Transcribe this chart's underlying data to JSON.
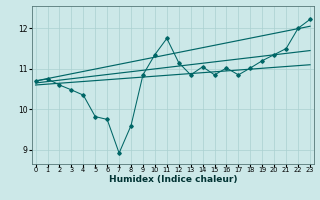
{
  "xlabel": "Humidex (Indice chaleur)",
  "ylabel": "",
  "bg_color": "#cce8e8",
  "line_color": "#006666",
  "grid_color": "#aad0d0",
  "x_data": [
    0,
    1,
    2,
    3,
    4,
    5,
    6,
    7,
    8,
    9,
    10,
    11,
    12,
    13,
    14,
    15,
    16,
    17,
    18,
    19,
    20,
    21,
    22,
    23
  ],
  "y_main": [
    10.7,
    10.75,
    10.6,
    10.48,
    10.35,
    9.82,
    9.75,
    8.92,
    9.6,
    10.85,
    11.35,
    11.75,
    11.15,
    10.85,
    11.05,
    10.85,
    11.02,
    10.85,
    11.02,
    11.2,
    11.35,
    11.5,
    12.0,
    12.22
  ],
  "trend1_x": [
    0,
    23
  ],
  "trend1_y": [
    10.7,
    12.05
  ],
  "trend2_x": [
    0,
    23
  ],
  "trend2_y": [
    10.65,
    11.45
  ],
  "trend3_x": [
    0,
    23
  ],
  "trend3_y": [
    10.6,
    11.1
  ],
  "ylim": [
    8.65,
    12.55
  ],
  "xlim": [
    -0.3,
    23.3
  ],
  "yticks": [
    9,
    10,
    11,
    12
  ],
  "xticks": [
    0,
    1,
    2,
    3,
    4,
    5,
    6,
    7,
    8,
    9,
    10,
    11,
    12,
    13,
    14,
    15,
    16,
    17,
    18,
    19,
    20,
    21,
    22,
    23
  ],
  "xtick_labels": [
    "0",
    "1",
    "2",
    "3",
    "4",
    "5",
    "6",
    "7",
    "8",
    "9",
    "10",
    "11",
    "12",
    "13",
    "14",
    "15",
    "16",
    "17",
    "18",
    "19",
    "20",
    "21",
    "22",
    "23"
  ]
}
